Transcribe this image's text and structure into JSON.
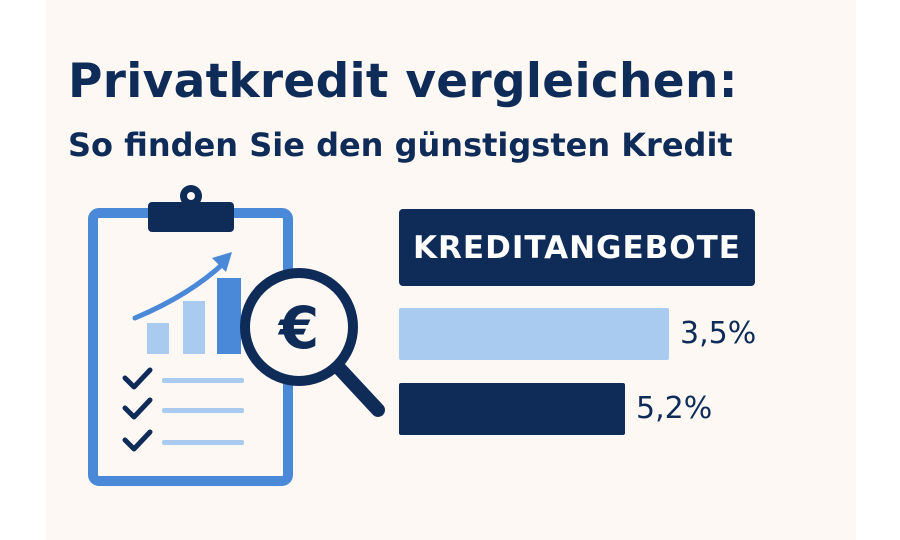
{
  "title": "Privatkredit vergleichen:",
  "subtitle": "So finden Sie den günstigsten Kredit",
  "colors": {
    "background": "#fdf8f3",
    "navy": "#0f2c59",
    "blue": "#4a89d8",
    "light_blue": "#a9cbf0"
  },
  "illustration": {
    "clipboard_icon": "clipboard-icon",
    "chart_icon": "bar-chart-icon",
    "magnifier_icon": "magnifying-glass-euro-icon",
    "currency_symbol": "€"
  },
  "chart_data": {
    "type": "bar",
    "title": "KREDITANGEBOTE",
    "categories": [
      "",
      ""
    ],
    "values": [
      3.5,
      5.2
    ],
    "value_labels": [
      "3,5%",
      "5,2%"
    ],
    "bar_colors": [
      "#a9cbf0",
      "#0f2c59"
    ]
  }
}
